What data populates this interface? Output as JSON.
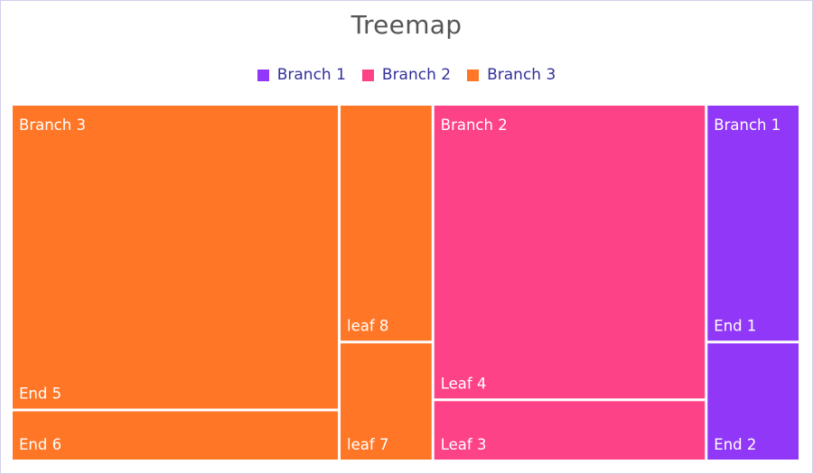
{
  "chart_data": {
    "type": "treemap",
    "title": "Treemap",
    "legend": {
      "placement": "top-center",
      "items": [
        {
          "name": "Branch 1",
          "color": "#9138f8"
        },
        {
          "name": "Branch 2",
          "color": "#fd4287"
        },
        {
          "name": "Branch 3",
          "color": "#ff7626"
        }
      ]
    },
    "colors": {
      "Branch 1": "#9138f8",
      "Branch 2": "#fd4287",
      "Branch 3": "#ff7626",
      "legend_text": "#32309a",
      "title_text": "#555555",
      "tile_text": "#ffffff"
    },
    "groups": [
      {
        "name": "Branch 3",
        "items": [
          {
            "name": "End 5",
            "value": 36
          },
          {
            "name": "End 6",
            "value": 6
          },
          {
            "name": "leaf 8",
            "value": 8
          },
          {
            "name": "leaf 7",
            "value": 4
          }
        ]
      },
      {
        "name": "Branch 2",
        "items": [
          {
            "name": "Leaf 4",
            "value": 29
          },
          {
            "name": "Leaf 3",
            "value": 6
          }
        ]
      },
      {
        "name": "Branch 1",
        "items": [
          {
            "name": "End 1",
            "value": 8
          },
          {
            "name": "End 2",
            "value": 4
          }
        ]
      }
    ]
  }
}
